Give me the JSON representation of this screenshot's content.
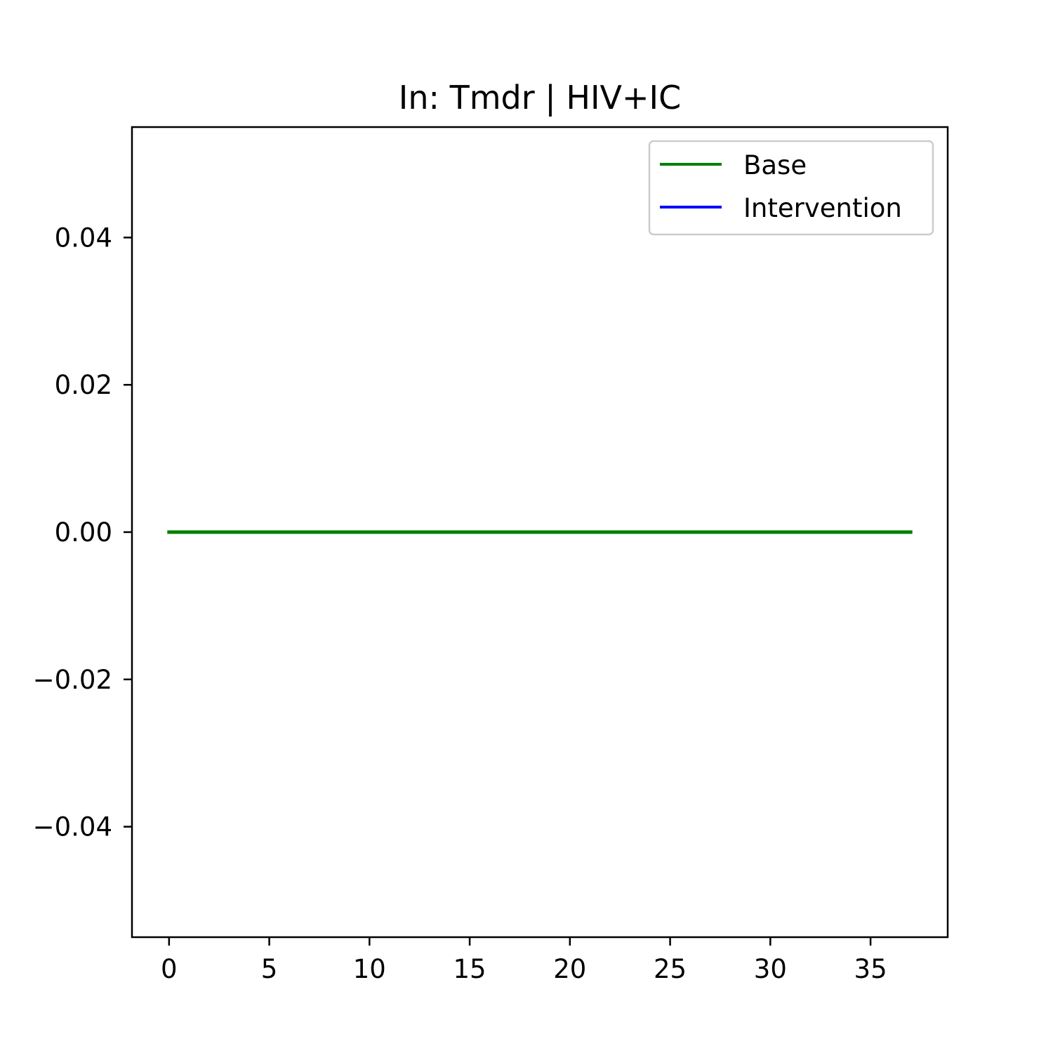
{
  "chart_data": {
    "type": "line",
    "title": "In: Tmdr | HIV+IC",
    "xlabel": "",
    "ylabel": "",
    "xlim": [
      -1.85,
      38.85
    ],
    "ylim": [
      -0.055,
      0.055
    ],
    "xticks": [
      0,
      5,
      10,
      15,
      20,
      25,
      30,
      35
    ],
    "yticks": [
      -0.04,
      -0.02,
      0.0,
      0.02,
      0.04
    ],
    "ytick_labels": [
      "−0.04",
      "−0.02",
      "0.00",
      "0.02",
      "0.04"
    ],
    "grid": false,
    "legend": {
      "position": "top-right"
    },
    "series": [
      {
        "name": "Base",
        "color": "#008000",
        "x": [
          0,
          1,
          2,
          3,
          4,
          5,
          6,
          7,
          8,
          9,
          10,
          11,
          12,
          13,
          14,
          15,
          16,
          17,
          18,
          19,
          20,
          21,
          22,
          23,
          24,
          25,
          26,
          27,
          28,
          29,
          30,
          31,
          32,
          33,
          34,
          35,
          36,
          37
        ],
        "y": [
          0,
          0,
          0,
          0,
          0,
          0,
          0,
          0,
          0,
          0,
          0,
          0,
          0,
          0,
          0,
          0,
          0,
          0,
          0,
          0,
          0,
          0,
          0,
          0,
          0,
          0,
          0,
          0,
          0,
          0,
          0,
          0,
          0,
          0,
          0,
          0,
          0,
          0
        ]
      },
      {
        "name": "Intervention",
        "color": "#0000ff",
        "x": [],
        "y": []
      }
    ]
  }
}
